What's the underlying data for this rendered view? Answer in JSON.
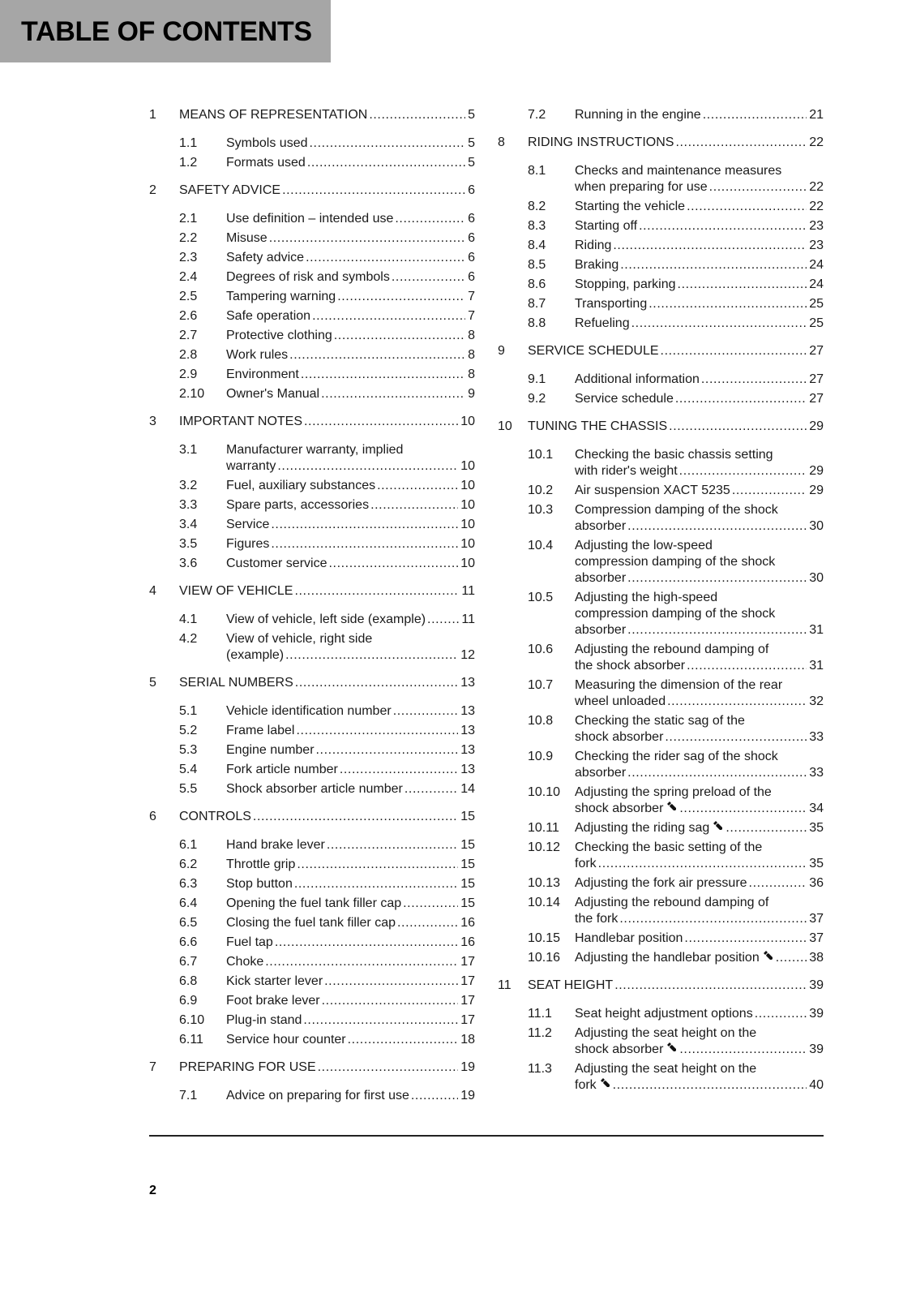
{
  "header": {
    "title": "TABLE OF CONTENTS",
    "background": "#a6a6a6"
  },
  "columns": [
    [
      {
        "num": "1",
        "lines": [
          "MEANS OF REPRESENTATION"
        ],
        "page": "5",
        "level": "chapter"
      },
      {
        "num": "1.1",
        "lines": [
          "Symbols used"
        ],
        "page": "5",
        "level": "sub"
      },
      {
        "num": "1.2",
        "lines": [
          "Formats used"
        ],
        "page": "5",
        "level": "sub"
      },
      {
        "num": "2",
        "lines": [
          "SAFETY ADVICE"
        ],
        "page": "6",
        "level": "chapter"
      },
      {
        "num": "2.1",
        "lines": [
          "Use definition – intended use"
        ],
        "page": "6",
        "level": "sub"
      },
      {
        "num": "2.2",
        "lines": [
          "Misuse"
        ],
        "page": "6",
        "level": "sub"
      },
      {
        "num": "2.3",
        "lines": [
          "Safety advice"
        ],
        "page": "6",
        "level": "sub"
      },
      {
        "num": "2.4",
        "lines": [
          "Degrees of risk and symbols"
        ],
        "page": "6",
        "level": "sub"
      },
      {
        "num": "2.5",
        "lines": [
          "Tampering warning"
        ],
        "page": "7",
        "level": "sub"
      },
      {
        "num": "2.6",
        "lines": [
          "Safe operation"
        ],
        "page": "7",
        "level": "sub"
      },
      {
        "num": "2.7",
        "lines": [
          "Protective clothing"
        ],
        "page": "8",
        "level": "sub"
      },
      {
        "num": "2.8",
        "lines": [
          "Work rules"
        ],
        "page": "8",
        "level": "sub"
      },
      {
        "num": "2.9",
        "lines": [
          "Environment"
        ],
        "page": "8",
        "level": "sub"
      },
      {
        "num": "2.10",
        "lines": [
          "Owner's Manual"
        ],
        "page": "9",
        "level": "sub"
      },
      {
        "num": "3",
        "lines": [
          "IMPORTANT NOTES"
        ],
        "page": "10",
        "level": "chapter"
      },
      {
        "num": "3.1",
        "lines": [
          "Manufacturer warranty, implied",
          "warranty"
        ],
        "page": "10",
        "level": "sub"
      },
      {
        "num": "3.2",
        "lines": [
          "Fuel, auxiliary substances"
        ],
        "page": "10",
        "level": "sub"
      },
      {
        "num": "3.3",
        "lines": [
          "Spare parts, accessories"
        ],
        "page": "10",
        "level": "sub"
      },
      {
        "num": "3.4",
        "lines": [
          "Service"
        ],
        "page": "10",
        "level": "sub"
      },
      {
        "num": "3.5",
        "lines": [
          "Figures"
        ],
        "page": "10",
        "level": "sub"
      },
      {
        "num": "3.6",
        "lines": [
          "Customer service"
        ],
        "page": "10",
        "level": "sub"
      },
      {
        "num": "4",
        "lines": [
          "VIEW OF VEHICLE"
        ],
        "page": "11",
        "level": "chapter"
      },
      {
        "num": "4.1",
        "lines": [
          "View of vehicle, left side (example)"
        ],
        "page": "11",
        "level": "sub"
      },
      {
        "num": "4.2",
        "lines": [
          "View of vehicle, right side",
          "(example)"
        ],
        "page": "12",
        "level": "sub"
      },
      {
        "num": "5",
        "lines": [
          "SERIAL NUMBERS"
        ],
        "page": "13",
        "level": "chapter"
      },
      {
        "num": "5.1",
        "lines": [
          "Vehicle identification number"
        ],
        "page": "13",
        "level": "sub"
      },
      {
        "num": "5.2",
        "lines": [
          "Frame label"
        ],
        "page": "13",
        "level": "sub"
      },
      {
        "num": "5.3",
        "lines": [
          "Engine number"
        ],
        "page": "13",
        "level": "sub"
      },
      {
        "num": "5.4",
        "lines": [
          "Fork article number"
        ],
        "page": "13",
        "level": "sub"
      },
      {
        "num": "5.5",
        "lines": [
          "Shock absorber article number"
        ],
        "page": "14",
        "level": "sub"
      },
      {
        "num": "6",
        "lines": [
          "CONTROLS"
        ],
        "page": "15",
        "level": "chapter"
      },
      {
        "num": "6.1",
        "lines": [
          "Hand brake lever"
        ],
        "page": "15",
        "level": "sub"
      },
      {
        "num": "6.2",
        "lines": [
          "Throttle grip"
        ],
        "page": "15",
        "level": "sub"
      },
      {
        "num": "6.3",
        "lines": [
          "Stop button"
        ],
        "page": "15",
        "level": "sub"
      },
      {
        "num": "6.4",
        "lines": [
          "Opening the fuel tank filler cap"
        ],
        "page": "15",
        "level": "sub"
      },
      {
        "num": "6.5",
        "lines": [
          "Closing the fuel tank filler cap"
        ],
        "page": "16",
        "level": "sub"
      },
      {
        "num": "6.6",
        "lines": [
          "Fuel tap"
        ],
        "page": "16",
        "level": "sub"
      },
      {
        "num": "6.7",
        "lines": [
          "Choke"
        ],
        "page": "17",
        "level": "sub"
      },
      {
        "num": "6.8",
        "lines": [
          "Kick starter lever"
        ],
        "page": "17",
        "level": "sub"
      },
      {
        "num": "6.9",
        "lines": [
          "Foot brake lever"
        ],
        "page": "17",
        "level": "sub"
      },
      {
        "num": "6.10",
        "lines": [
          "Plug-in stand"
        ],
        "page": "17",
        "level": "sub"
      },
      {
        "num": "6.11",
        "lines": [
          "Service hour counter"
        ],
        "page": "18",
        "level": "sub"
      },
      {
        "num": "7",
        "lines": [
          "PREPARING FOR USE"
        ],
        "page": "19",
        "level": "chapter"
      },
      {
        "num": "7.1",
        "lines": [
          "Advice on preparing for first use"
        ],
        "page": "19",
        "level": "sub"
      }
    ],
    [
      {
        "num": "7.2",
        "lines": [
          "Running in the engine"
        ],
        "page": "21",
        "level": "sub"
      },
      {
        "num": "8",
        "lines": [
          "RIDING INSTRUCTIONS"
        ],
        "page": "22",
        "level": "chapter"
      },
      {
        "num": "8.1",
        "lines": [
          "Checks and maintenance measures",
          "when preparing for use"
        ],
        "page": "22",
        "level": "sub"
      },
      {
        "num": "8.2",
        "lines": [
          "Starting the vehicle"
        ],
        "page": "22",
        "level": "sub"
      },
      {
        "num": "8.3",
        "lines": [
          "Starting off"
        ],
        "page": "23",
        "level": "sub"
      },
      {
        "num": "8.4",
        "lines": [
          "Riding"
        ],
        "page": "23",
        "level": "sub"
      },
      {
        "num": "8.5",
        "lines": [
          "Braking"
        ],
        "page": "24",
        "level": "sub"
      },
      {
        "num": "8.6",
        "lines": [
          "Stopping, parking"
        ],
        "page": "24",
        "level": "sub"
      },
      {
        "num": "8.7",
        "lines": [
          "Transporting"
        ],
        "page": "25",
        "level": "sub"
      },
      {
        "num": "8.8",
        "lines": [
          "Refueling"
        ],
        "page": "25",
        "level": "sub"
      },
      {
        "num": "9",
        "lines": [
          "SERVICE SCHEDULE"
        ],
        "page": "27",
        "level": "chapter"
      },
      {
        "num": "9.1",
        "lines": [
          "Additional information"
        ],
        "page": "27",
        "level": "sub"
      },
      {
        "num": "9.2",
        "lines": [
          "Service schedule"
        ],
        "page": "27",
        "level": "sub"
      },
      {
        "num": "10",
        "lines": [
          "TUNING THE CHASSIS"
        ],
        "page": "29",
        "level": "chapter"
      },
      {
        "num": "10.1",
        "lines": [
          "Checking the basic chassis setting",
          "with rider's weight"
        ],
        "page": "29",
        "level": "sub"
      },
      {
        "num": "10.2",
        "lines": [
          "Air suspension XACT 5235"
        ],
        "page": "29",
        "level": "sub"
      },
      {
        "num": "10.3",
        "lines": [
          "Compression damping of the shock",
          "absorber"
        ],
        "page": "30",
        "level": "sub"
      },
      {
        "num": "10.4",
        "lines": [
          "Adjusting the low-speed",
          "compression damping of the shock",
          "absorber"
        ],
        "page": "30",
        "level": "sub"
      },
      {
        "num": "10.5",
        "lines": [
          "Adjusting the high-speed",
          "compression damping of the shock",
          "absorber"
        ],
        "page": "31",
        "level": "sub"
      },
      {
        "num": "10.6",
        "lines": [
          "Adjusting the rebound damping of",
          "the shock absorber"
        ],
        "page": "31",
        "level": "sub"
      },
      {
        "num": "10.7",
        "lines": [
          "Measuring the dimension of the rear",
          "wheel unloaded"
        ],
        "page": "32",
        "level": "sub"
      },
      {
        "num": "10.8",
        "lines": [
          "Checking the static sag of the",
          "shock absorber"
        ],
        "page": "33",
        "level": "sub"
      },
      {
        "num": "10.9",
        "lines": [
          "Checking the rider sag of the shock",
          "absorber"
        ],
        "page": "33",
        "level": "sub"
      },
      {
        "num": "10.10",
        "lines": [
          "Adjusting the spring preload of the",
          "shock absorber"
        ],
        "page": "34",
        "level": "sub",
        "icon": "wrench-icon"
      },
      {
        "num": "10.11",
        "lines": [
          "Adjusting the riding sag"
        ],
        "page": "35",
        "level": "sub",
        "icon": "wrench-icon"
      },
      {
        "num": "10.12",
        "lines": [
          "Checking the basic setting of the",
          "fork"
        ],
        "page": "35",
        "level": "sub"
      },
      {
        "num": "10.13",
        "lines": [
          "Adjusting the fork air pressure"
        ],
        "page": "36",
        "level": "sub"
      },
      {
        "num": "10.14",
        "lines": [
          "Adjusting the rebound damping of",
          "the fork"
        ],
        "page": "37",
        "level": "sub"
      },
      {
        "num": "10.15",
        "lines": [
          "Handlebar position"
        ],
        "page": "37",
        "level": "sub"
      },
      {
        "num": "10.16",
        "lines": [
          "Adjusting the handlebar position"
        ],
        "page": "38",
        "level": "sub",
        "icon": "wrench-icon"
      },
      {
        "num": "11",
        "lines": [
          "SEAT HEIGHT"
        ],
        "page": "39",
        "level": "chapter"
      },
      {
        "num": "11.1",
        "lines": [
          "Seat height adjustment options"
        ],
        "page": "39",
        "level": "sub"
      },
      {
        "num": "11.2",
        "lines": [
          "Adjusting the seat height on the",
          "shock absorber"
        ],
        "page": "39",
        "level": "sub",
        "icon": "wrench-icon"
      },
      {
        "num": "11.3",
        "lines": [
          "Adjusting the seat height on the",
          "fork"
        ],
        "page": "40",
        "level": "sub",
        "icon": "wrench-icon"
      }
    ]
  ],
  "footer": {
    "page_number": "2"
  }
}
